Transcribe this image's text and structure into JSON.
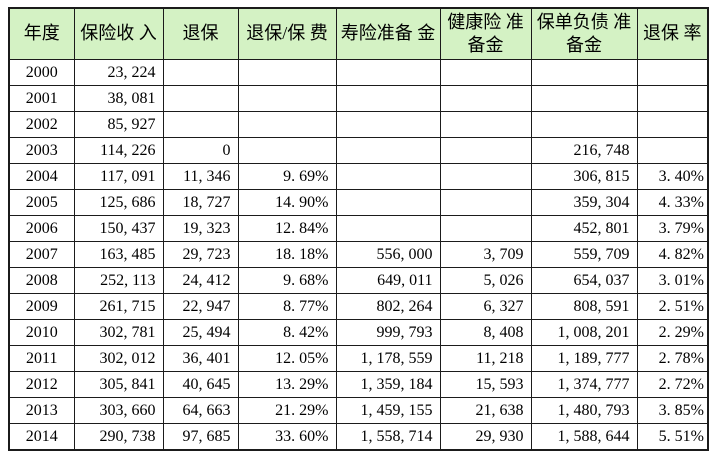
{
  "table": {
    "header_bg": "#d4f2c4",
    "border_color": "#1b1b1b",
    "columns": [
      "年度",
      "保险收\n入",
      "退保",
      "退保/保\n费",
      "寿险准备\n金",
      "健康险\n准备金",
      "保单负债\n准备金",
      "退保\n率"
    ],
    "rows": [
      [
        "2000",
        "23, 224",
        "",
        "",
        "",
        "",
        "",
        ""
      ],
      [
        "2001",
        "38, 081",
        "",
        "",
        "",
        "",
        "",
        ""
      ],
      [
        "2002",
        "85, 927",
        "",
        "",
        "",
        "",
        "",
        ""
      ],
      [
        "2003",
        "114, 226",
        "0",
        "",
        "",
        "",
        "216, 748",
        ""
      ],
      [
        "2004",
        "117, 091",
        "11, 346",
        "9. 69%",
        "",
        "",
        "306, 815",
        "3. 40%"
      ],
      [
        "2005",
        "125, 686",
        "18, 727",
        "14. 90%",
        "",
        "",
        "359, 304",
        "4. 33%"
      ],
      [
        "2006",
        "150, 437",
        "19, 323",
        "12. 84%",
        "",
        "",
        "452, 801",
        "3. 79%"
      ],
      [
        "2007",
        "163, 485",
        "29, 723",
        "18. 18%",
        "556, 000",
        "3, 709",
        "559, 709",
        "4. 82%"
      ],
      [
        "2008",
        "252, 113",
        "24, 412",
        "9. 68%",
        "649, 011",
        "5, 026",
        "654, 037",
        "3. 01%"
      ],
      [
        "2009",
        "261, 715",
        "22, 947",
        "8. 77%",
        "802, 264",
        "6, 327",
        "808, 591",
        "2. 51%"
      ],
      [
        "2010",
        "302, 781",
        "25, 494",
        "8. 42%",
        "999, 793",
        "8, 408",
        "1, 008, 201",
        "2. 29%"
      ],
      [
        "2011",
        "302, 012",
        "36, 401",
        "12. 05%",
        "1, 178, 559",
        "11, 218",
        "1, 189, 777",
        "2. 78%"
      ],
      [
        "2012",
        "305, 841",
        "40, 645",
        "13. 29%",
        "1, 359, 184",
        "15, 593",
        "1, 374, 777",
        "2. 72%"
      ],
      [
        "2013",
        "303, 660",
        "64, 663",
        "21. 29%",
        "1, 459, 155",
        "21, 638",
        "1, 480, 793",
        "3. 85%"
      ],
      [
        "2014",
        "290, 738",
        "97, 685",
        "33. 60%",
        "1, 558, 714",
        "29, 930",
        "1, 588, 644",
        "5. 51%"
      ]
    ]
  }
}
